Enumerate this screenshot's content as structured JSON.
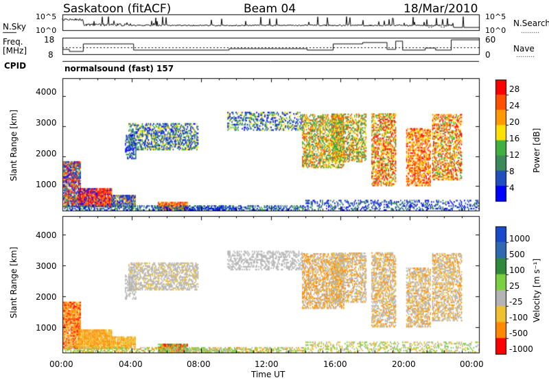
{
  "header": {
    "station": "Saskatoon (fitACF)",
    "beam": "Beam 04",
    "date": "18/Mar/2010"
  },
  "panels": {
    "noise": {
      "left_label": "N.Sky",
      "right_label": "N.Search",
      "left_ticks": [
        "10^5",
        "10^0"
      ],
      "right_ticks": [
        "10^5",
        "10^0"
      ]
    },
    "freq": {
      "left_label_line1": "Freq.",
      "left_label_line2": "[MHz]",
      "right_label": "Nave",
      "left_ticks": [
        "18",
        "8"
      ],
      "right_ticks": [
        "60",
        "0"
      ]
    },
    "cpid": {
      "label": "CPID",
      "program": "normalsound (fast) 157"
    }
  },
  "chart_data": [
    {
      "type": "heatmap",
      "title": "",
      "quantity": "Power",
      "ylabel": "Slant Range [km]",
      "ylim": [
        180,
        4600
      ],
      "yticks": [
        "1000",
        "2000",
        "3000",
        "4000"
      ],
      "colorbar_label": "Power [dB]",
      "colorbar_ticks": [
        "4",
        "8",
        "12",
        "16",
        "20",
        "24",
        "28"
      ],
      "colorbar_range": [
        0,
        32
      ]
    },
    {
      "type": "heatmap",
      "title": "",
      "quantity": "Velocity",
      "ylabel": "Slant Range [km]",
      "ylim": [
        180,
        4600
      ],
      "yticks": [
        "1000",
        "2000",
        "3000",
        "4000"
      ],
      "colorbar_label": "Velocity [m s⁻¹]",
      "colorbar_ticks": [
        "1000",
        "500",
        "100",
        "25",
        "-25",
        "-100",
        "-500",
        "-1000"
      ]
    }
  ],
  "xaxis": {
    "label": "Time UT",
    "ticks": [
      "00:00",
      "04:00",
      "08:00",
      "12:00",
      "16:00",
      "20:00",
      "00:00"
    ],
    "range_hours": [
      0,
      24
    ]
  },
  "colors": {
    "power_scale": [
      "#0000ff",
      "#2050c0",
      "#3a8a5a",
      "#40b040",
      "#ffe000",
      "#ff9a00",
      "#ff5000",
      "#ff0000"
    ],
    "velocity_scale": [
      "#1a4acc",
      "#2f6ab0",
      "#2f8a3c",
      "#7ad040",
      "#b4b4b4",
      "#f0c030",
      "#ff8a00",
      "#ff0000"
    ]
  }
}
